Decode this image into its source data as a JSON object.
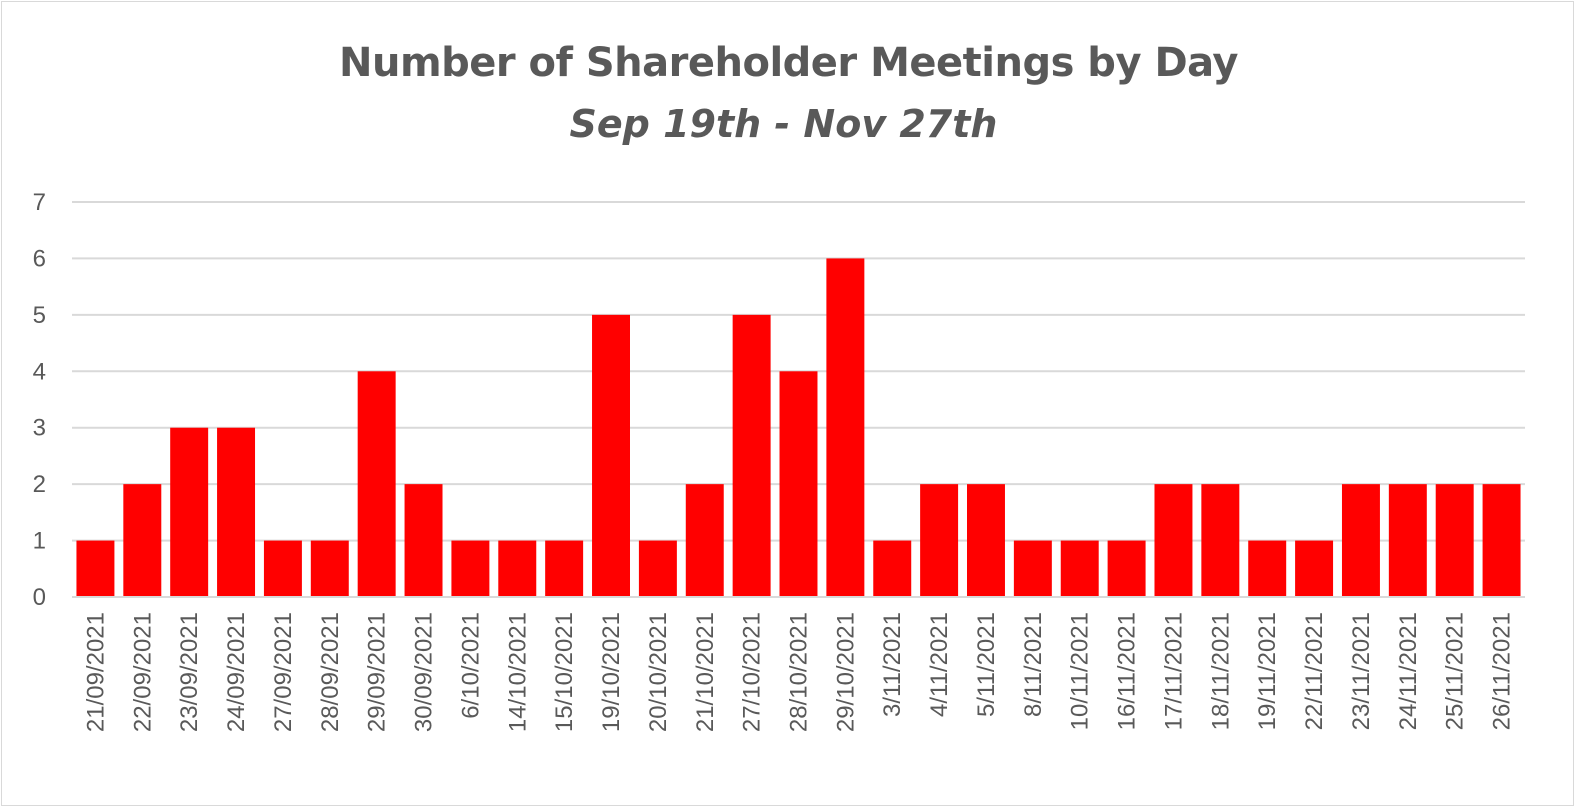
{
  "chart_data": {
    "type": "bar",
    "title": "Number of Shareholder Meetings by Day",
    "subtitle": "Sep 19th - Nov 27th",
    "xlabel": "",
    "ylabel": "",
    "ylim": [
      0,
      7
    ],
    "yticks": [
      "0",
      "1",
      "2",
      "3",
      "4",
      "5",
      "6",
      "7"
    ],
    "grid": true,
    "legend": "none",
    "bar_color": "#ff0000",
    "categories": [
      "21/09/2021",
      "22/09/2021",
      "23/09/2021",
      "24/09/2021",
      "27/09/2021",
      "28/09/2021",
      "29/09/2021",
      "30/09/2021",
      "6/10/2021",
      "14/10/2021",
      "15/10/2021",
      "19/10/2021",
      "20/10/2021",
      "21/10/2021",
      "27/10/2021",
      "28/10/2021",
      "29/10/2021",
      "3/11/2021",
      "4/11/2021",
      "5/11/2021",
      "8/11/2021",
      "10/11/2021",
      "16/11/2021",
      "17/11/2021",
      "18/11/2021",
      "19/11/2021",
      "22/11/2021",
      "23/11/2021",
      "24/11/2021",
      "25/11/2021",
      "26/11/2021"
    ],
    "values": [
      1,
      2,
      3,
      3,
      1,
      1,
      4,
      2,
      1,
      1,
      1,
      5,
      1,
      2,
      5,
      4,
      6,
      1,
      2,
      2,
      1,
      1,
      1,
      2,
      2,
      1,
      1,
      2,
      2,
      2,
      2
    ]
  }
}
